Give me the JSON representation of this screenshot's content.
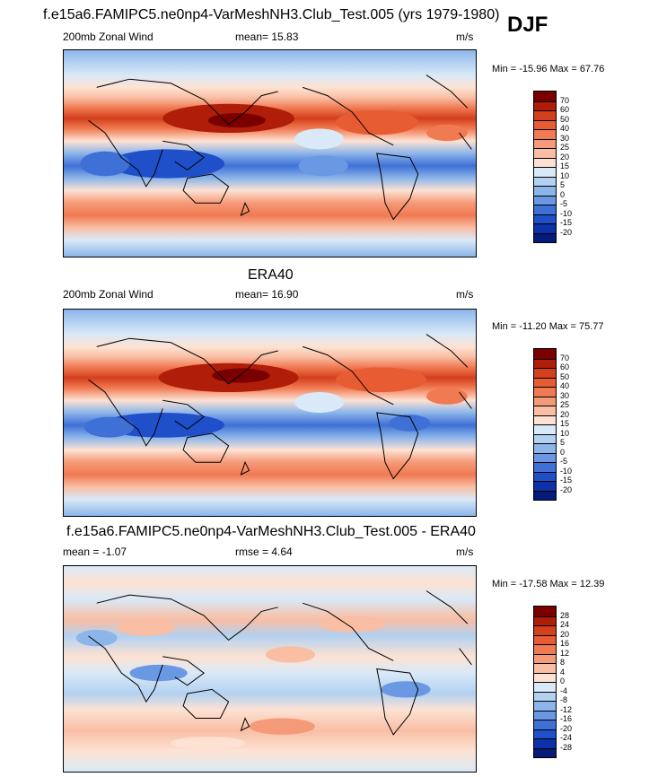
{
  "header": {
    "main_title": "f.e15a6.FAMIPC5.ne0np4-VarMeshNH3.Club_Test.005 (yrs 1979-1980)",
    "season": "DJF"
  },
  "panels": [
    {
      "variable": "200mb Zonal Wind",
      "mean_label": "mean=  15.83",
      "units": "m/s",
      "minmax": "Min = -15.96 Max =  67.76",
      "levels": [
        "70",
        "60",
        "50",
        "40",
        "30",
        "25",
        "20",
        "15",
        "10",
        "5",
        "0",
        "-5",
        "-10",
        "-15",
        "-20"
      ],
      "colors": [
        "#7a0000",
        "#b01e0a",
        "#d2401c",
        "#e85c33",
        "#f07a52",
        "#f59a78",
        "#f9bea4",
        "#fde2d3",
        "#d9e9f7",
        "#b3d1f1",
        "#8cb5ea",
        "#6a98e2",
        "#3f70d6",
        "#1f4fc9",
        "#0d31a8",
        "#061a7a"
      ]
    },
    {
      "title": "ERA40",
      "variable": "200mb Zonal Wind",
      "mean_label": "mean=  16.90",
      "units": "m/s",
      "minmax": "Min = -11.20 Max =  75.77",
      "levels": [
        "70",
        "60",
        "50",
        "40",
        "30",
        "25",
        "20",
        "15",
        "10",
        "5",
        "0",
        "-5",
        "-10",
        "-15",
        "-20"
      ],
      "colors": [
        "#7a0000",
        "#b01e0a",
        "#d2401c",
        "#e85c33",
        "#f07a52",
        "#f59a78",
        "#f9bea4",
        "#fde2d3",
        "#d9e9f7",
        "#b3d1f1",
        "#8cb5ea",
        "#6a98e2",
        "#3f70d6",
        "#1f4fc9",
        "#0d31a8",
        "#061a7a"
      ]
    },
    {
      "title": "f.e15a6.FAMIPC5.ne0np4-VarMeshNH3.Club_Test.005 - ERA40",
      "variable": "mean =  -1.07",
      "mean_label": "rmse =   4.64",
      "units": "m/s",
      "minmax": "Min = -17.58 Max =  12.39",
      "levels": [
        "28",
        "24",
        "20",
        "16",
        "12",
        "8",
        "4",
        "0",
        "-4",
        "-8",
        "-12",
        "-16",
        "-20",
        "-24",
        "-28"
      ],
      "colors": [
        "#7a0000",
        "#b01e0a",
        "#d2401c",
        "#e85c33",
        "#f07a52",
        "#f59a78",
        "#f9bea4",
        "#fde2d3",
        "#d9e9f7",
        "#b3d1f1",
        "#8cb5ea",
        "#6a98e2",
        "#3f70d6",
        "#1f4fc9",
        "#0d31a8",
        "#061a7a"
      ]
    }
  ],
  "chart_data": [
    {
      "type": "heatmap",
      "title": "200mb Zonal Wind",
      "units": "m/s",
      "mean": 15.83,
      "min": -15.96,
      "max": 67.76,
      "contour_levels": [
        -20,
        -15,
        -10,
        -5,
        0,
        5,
        10,
        15,
        20,
        25,
        30,
        40,
        50,
        60,
        70
      ]
    },
    {
      "type": "heatmap",
      "title": "ERA40",
      "units": "m/s",
      "mean": 16.9,
      "min": -11.2,
      "max": 75.77,
      "contour_levels": [
        -20,
        -15,
        -10,
        -5,
        0,
        5,
        10,
        15,
        20,
        25,
        30,
        40,
        50,
        60,
        70
      ]
    },
    {
      "type": "heatmap",
      "title": "f.e15a6.FAMIPC5.ne0np4-VarMeshNH3.Club_Test.005 - ERA40",
      "units": "m/s",
      "mean": -1.07,
      "rmse": 4.64,
      "min": -17.58,
      "max": 12.39,
      "contour_levels": [
        -28,
        -24,
        -20,
        -16,
        -12,
        -8,
        -4,
        0,
        4,
        8,
        12,
        16,
        20,
        24,
        28
      ]
    }
  ]
}
